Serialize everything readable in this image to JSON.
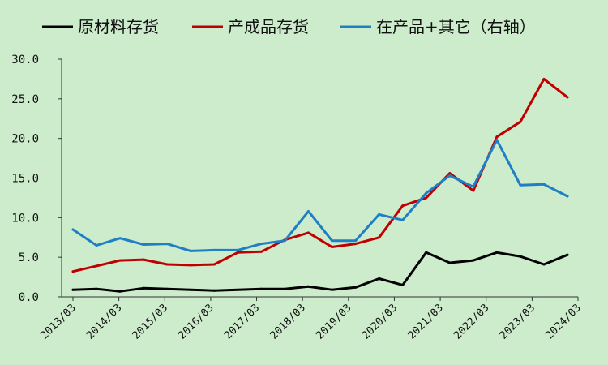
{
  "chart_data": {
    "type": "line",
    "legend": {
      "placement": "top",
      "entries": [
        "原材料存货",
        "产成品存货",
        "在产品+其它（右轴）"
      ]
    },
    "x_ticks": [
      "2013/03",
      "2014/03",
      "2015/03",
      "2016/03",
      "2017/03",
      "2018/03",
      "2019/03",
      "2020/03",
      "2021/03",
      "2022/03",
      "2023/03",
      "2024/03"
    ],
    "y_ticks": [
      "0.0",
      "5.0",
      "10.0",
      "15.0",
      "20.0",
      "25.0",
      "30.0"
    ],
    "ylim": [
      0,
      30
    ],
    "grid": false,
    "x": [
      "2013/06",
      "2013/12",
      "2014/06",
      "2014/12",
      "2015/06",
      "2015/12",
      "2016/06",
      "2016/12",
      "2017/06",
      "2017/12",
      "2018/06",
      "2018/12",
      "2019/06",
      "2019/12",
      "2020/06",
      "2020/12",
      "2021/06",
      "2021/12",
      "2022/06",
      "2022/12",
      "2023/06",
      "2023/12",
      "2024/06"
    ],
    "series": [
      {
        "name": "原材料存货",
        "color": "#000000",
        "values": [
          0.9,
          1.0,
          0.7,
          1.1,
          1.0,
          0.9,
          0.8,
          0.9,
          1.0,
          1.0,
          1.3,
          0.9,
          1.2,
          2.3,
          1.5,
          5.6,
          4.3,
          4.6,
          5.6,
          5.1,
          4.1,
          5.3,
          null
        ]
      },
      {
        "name": "产成品存货",
        "color": "#c00000",
        "values": [
          3.2,
          3.9,
          4.6,
          4.7,
          4.1,
          4.0,
          4.1,
          5.6,
          5.7,
          7.2,
          8.1,
          6.3,
          6.7,
          7.5,
          11.5,
          12.5,
          15.6,
          13.4,
          20.2,
          22.1,
          27.5,
          25.2,
          null
        ]
      },
      {
        "name": "在产品+其它（右轴）",
        "color": "#1f7fc6",
        "values": [
          8.5,
          6.5,
          7.4,
          6.6,
          6.7,
          5.8,
          5.9,
          5.9,
          6.7,
          7.1,
          10.8,
          7.1,
          7.1,
          10.4,
          9.7,
          13.1,
          15.3,
          13.9,
          19.8,
          14.1,
          14.2,
          12.7,
          null
        ]
      }
    ]
  }
}
